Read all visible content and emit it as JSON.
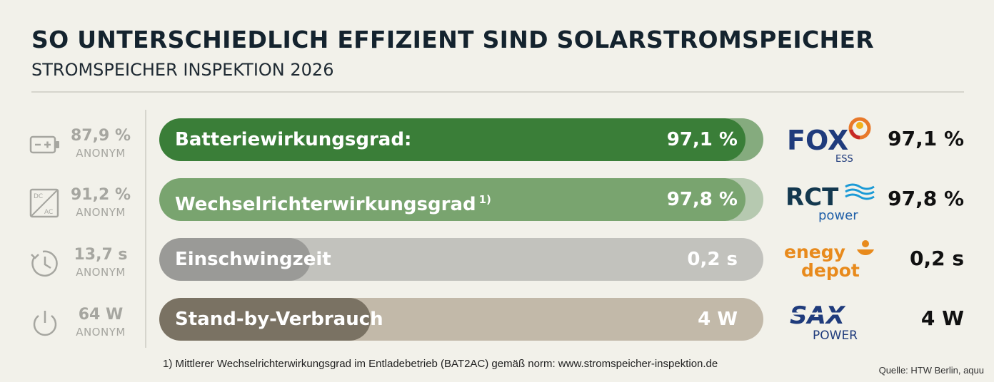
{
  "title": "SO UNTERSCHIEDLICH EFFIZIENT SIND SOLARSTROMSPEICHER",
  "subtitle": "STROMSPEICHER INSPEKTION 2026",
  "chart_data": {
    "type": "bar",
    "orientation": "horizontal",
    "categories": [
      "Batteriewirkungsgrad:",
      "Wechselrichterwirkungsgrad",
      "Einschwingzeit",
      "Stand-by-Verbrauch"
    ],
    "category_footnote_marks": [
      "",
      "1)",
      "",
      ""
    ],
    "best_values_text": [
      "97,1 %",
      "97,8 %",
      "0,2 s",
      "4 W"
    ],
    "best_values": [
      97.1,
      97.8,
      0.2,
      4
    ],
    "units": [
      "%",
      "%",
      "s",
      "W"
    ],
    "worst_values_text": [
      "87,9 %",
      "91,2 %",
      "13,7 s",
      "64 W"
    ],
    "worst_values": [
      87.9,
      91.2,
      13.7,
      64
    ],
    "worst_label": "ANONYM",
    "fill_fraction": [
      0.97,
      0.97,
      0.25,
      0.35
    ],
    "manufacturers": [
      "FOX ESS",
      "RCT power",
      "enegy depot",
      "SAX POWER"
    ],
    "colors": {
      "track": [
        "#85ab7e",
        "#b6c9b0",
        "#c2c2bd",
        "#c2b9a9"
      ],
      "fill": [
        "#3a7e38",
        "#79a46f",
        "#9a9a97",
        "#7a7263"
      ]
    }
  },
  "icons": [
    "battery-icon",
    "dc-ac-icon",
    "clock-icon",
    "power-icon"
  ],
  "logos": {
    "fox": {
      "main": "FOX",
      "sub": "ESS"
    },
    "rct": {
      "main": "RCT",
      "sub": "power"
    },
    "energy": {
      "line1": "enegy",
      "line2": "depot"
    },
    "sax": {
      "main": "SAX",
      "sub": "POWER"
    }
  },
  "footnote": "1) Mittlerer Wechselrichterwirkungsgrad im Entladebetrieb (BAT2AC) gemäß norm: www.stromspeicher-inspektion.de",
  "source": "Quelle: HTW Berlin, aquu"
}
